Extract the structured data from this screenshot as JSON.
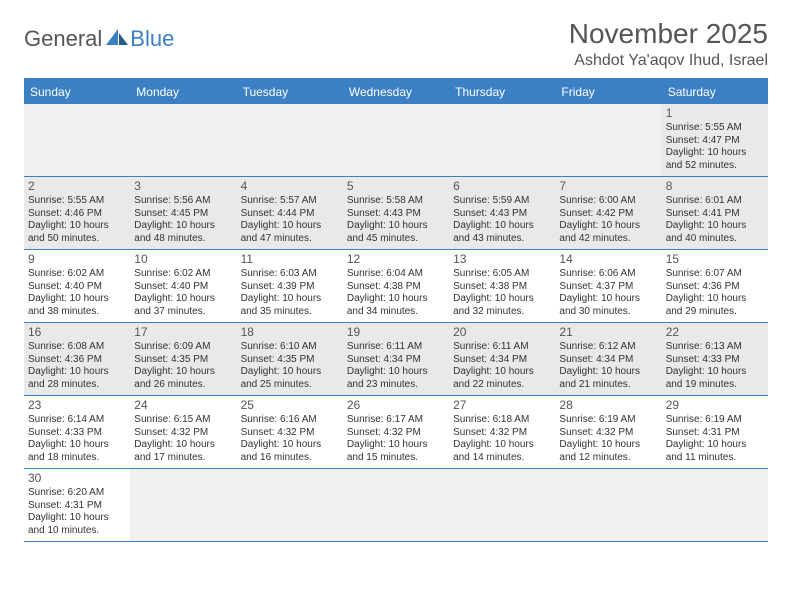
{
  "logo": {
    "text1": "General",
    "text2": "Blue"
  },
  "title": "November 2025",
  "location": "Ashdot Ya'aqov Ihud, Israel",
  "colors": {
    "header_bg": "#3b7fc4",
    "row_alt_bg": "#e9e9e9",
    "empty_bg": "#f0f0f0",
    "text": "#333333",
    "title_text": "#555555"
  },
  "dayNames": [
    "Sunday",
    "Monday",
    "Tuesday",
    "Wednesday",
    "Thursday",
    "Friday",
    "Saturday"
  ],
  "weeks": [
    [
      null,
      null,
      null,
      null,
      null,
      null,
      {
        "n": 1,
        "sr": "5:55 AM",
        "ss": "4:47 PM",
        "dl": "10 hours and 52 minutes."
      }
    ],
    [
      {
        "n": 2,
        "sr": "5:55 AM",
        "ss": "4:46 PM",
        "dl": "10 hours and 50 minutes."
      },
      {
        "n": 3,
        "sr": "5:56 AM",
        "ss": "4:45 PM",
        "dl": "10 hours and 48 minutes."
      },
      {
        "n": 4,
        "sr": "5:57 AM",
        "ss": "4:44 PM",
        "dl": "10 hours and 47 minutes."
      },
      {
        "n": 5,
        "sr": "5:58 AM",
        "ss": "4:43 PM",
        "dl": "10 hours and 45 minutes."
      },
      {
        "n": 6,
        "sr": "5:59 AM",
        "ss": "4:43 PM",
        "dl": "10 hours and 43 minutes."
      },
      {
        "n": 7,
        "sr": "6:00 AM",
        "ss": "4:42 PM",
        "dl": "10 hours and 42 minutes."
      },
      {
        "n": 8,
        "sr": "6:01 AM",
        "ss": "4:41 PM",
        "dl": "10 hours and 40 minutes."
      }
    ],
    [
      {
        "n": 9,
        "sr": "6:02 AM",
        "ss": "4:40 PM",
        "dl": "10 hours and 38 minutes."
      },
      {
        "n": 10,
        "sr": "6:02 AM",
        "ss": "4:40 PM",
        "dl": "10 hours and 37 minutes."
      },
      {
        "n": 11,
        "sr": "6:03 AM",
        "ss": "4:39 PM",
        "dl": "10 hours and 35 minutes."
      },
      {
        "n": 12,
        "sr": "6:04 AM",
        "ss": "4:38 PM",
        "dl": "10 hours and 34 minutes."
      },
      {
        "n": 13,
        "sr": "6:05 AM",
        "ss": "4:38 PM",
        "dl": "10 hours and 32 minutes."
      },
      {
        "n": 14,
        "sr": "6:06 AM",
        "ss": "4:37 PM",
        "dl": "10 hours and 30 minutes."
      },
      {
        "n": 15,
        "sr": "6:07 AM",
        "ss": "4:36 PM",
        "dl": "10 hours and 29 minutes."
      }
    ],
    [
      {
        "n": 16,
        "sr": "6:08 AM",
        "ss": "4:36 PM",
        "dl": "10 hours and 28 minutes."
      },
      {
        "n": 17,
        "sr": "6:09 AM",
        "ss": "4:35 PM",
        "dl": "10 hours and 26 minutes."
      },
      {
        "n": 18,
        "sr": "6:10 AM",
        "ss": "4:35 PM",
        "dl": "10 hours and 25 minutes."
      },
      {
        "n": 19,
        "sr": "6:11 AM",
        "ss": "4:34 PM",
        "dl": "10 hours and 23 minutes."
      },
      {
        "n": 20,
        "sr": "6:11 AM",
        "ss": "4:34 PM",
        "dl": "10 hours and 22 minutes."
      },
      {
        "n": 21,
        "sr": "6:12 AM",
        "ss": "4:34 PM",
        "dl": "10 hours and 21 minutes."
      },
      {
        "n": 22,
        "sr": "6:13 AM",
        "ss": "4:33 PM",
        "dl": "10 hours and 19 minutes."
      }
    ],
    [
      {
        "n": 23,
        "sr": "6:14 AM",
        "ss": "4:33 PM",
        "dl": "10 hours and 18 minutes."
      },
      {
        "n": 24,
        "sr": "6:15 AM",
        "ss": "4:32 PM",
        "dl": "10 hours and 17 minutes."
      },
      {
        "n": 25,
        "sr": "6:16 AM",
        "ss": "4:32 PM",
        "dl": "10 hours and 16 minutes."
      },
      {
        "n": 26,
        "sr": "6:17 AM",
        "ss": "4:32 PM",
        "dl": "10 hours and 15 minutes."
      },
      {
        "n": 27,
        "sr": "6:18 AM",
        "ss": "4:32 PM",
        "dl": "10 hours and 14 minutes."
      },
      {
        "n": 28,
        "sr": "6:19 AM",
        "ss": "4:32 PM",
        "dl": "10 hours and 12 minutes."
      },
      {
        "n": 29,
        "sr": "6:19 AM",
        "ss": "4:31 PM",
        "dl": "10 hours and 11 minutes."
      }
    ],
    [
      {
        "n": 30,
        "sr": "6:20 AM",
        "ss": "4:31 PM",
        "dl": "10 hours and 10 minutes."
      },
      null,
      null,
      null,
      null,
      null,
      null
    ]
  ],
  "labels": {
    "sunrise": "Sunrise:",
    "sunset": "Sunset:",
    "daylight": "Daylight:"
  }
}
